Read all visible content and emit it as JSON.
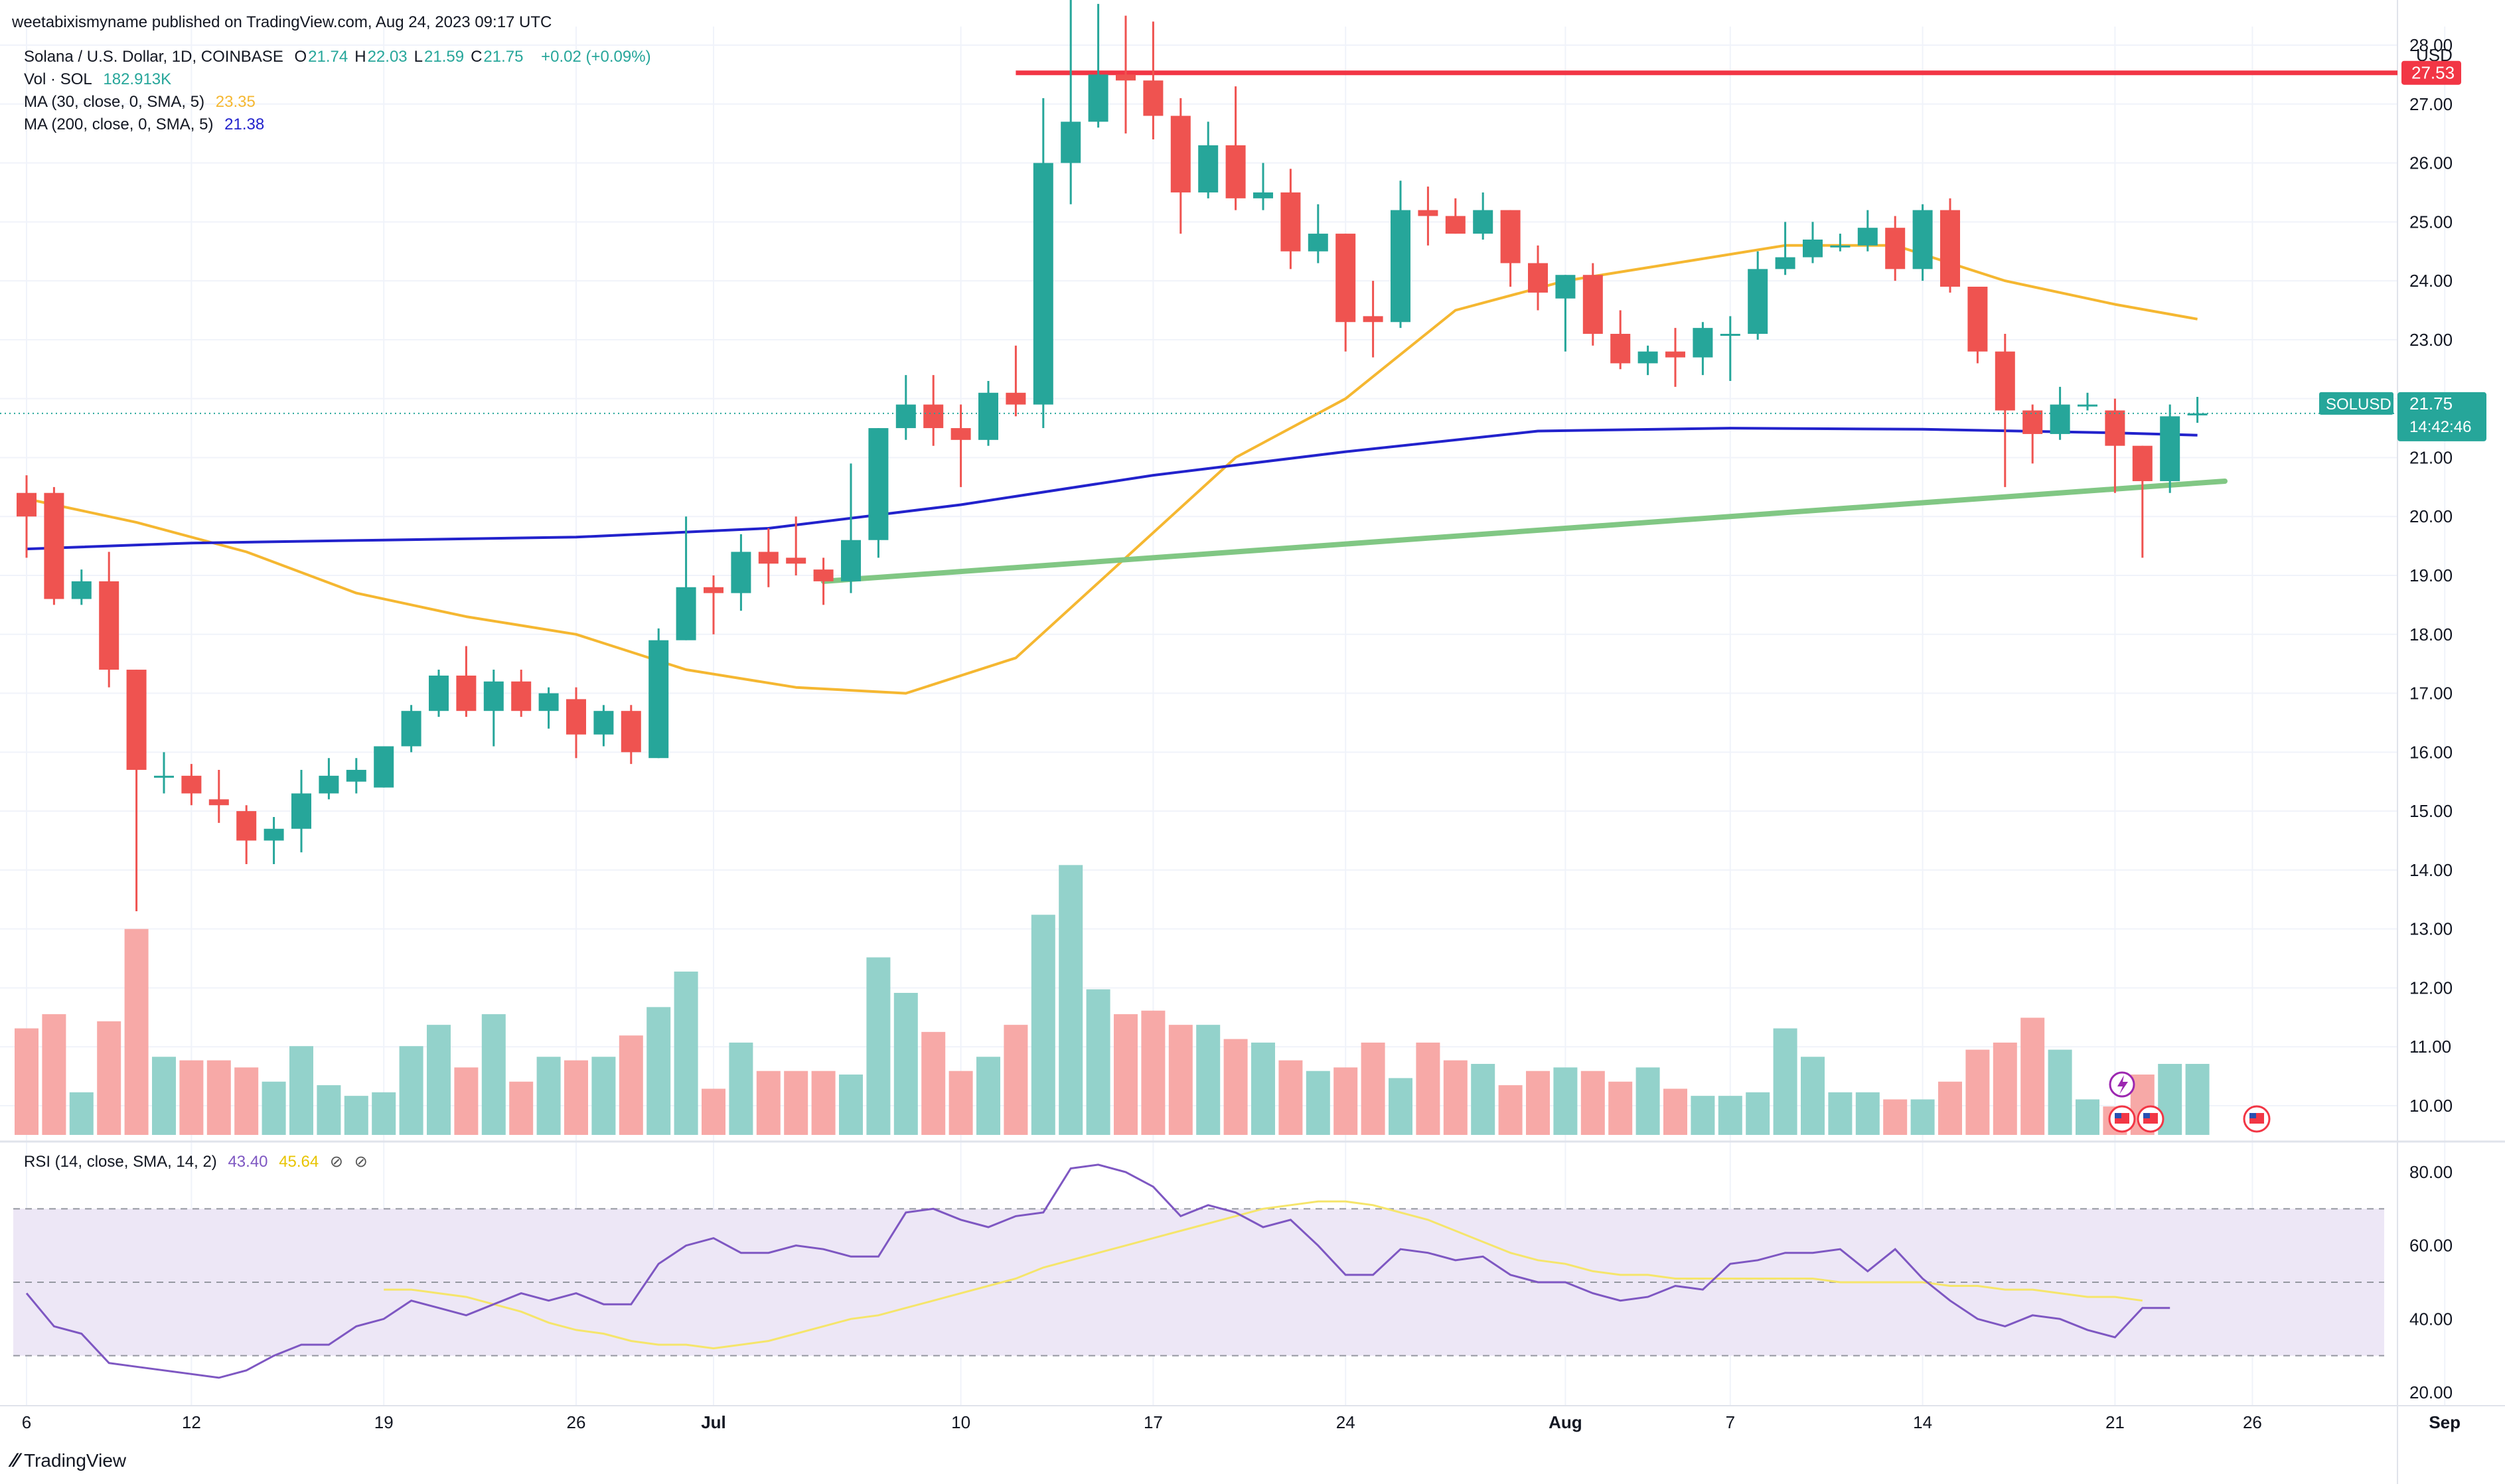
{
  "header": {
    "published_by": "weetabixismyname published on TradingView.com, Aug 24, 2023 09:17 UTC"
  },
  "legend": {
    "symbol": "Solana / U.S. Dollar, 1D, COINBASE",
    "ohlc": [
      {
        "k": "O",
        "v": "21.74"
      },
      {
        "k": "H",
        "v": "22.03"
      },
      {
        "k": "L",
        "v": "21.59"
      },
      {
        "k": "C",
        "v": "21.75"
      }
    ],
    "change": "+0.02 (+0.09%)",
    "vol_label": "Vol · SOL",
    "vol_value": "182.913K",
    "ma30_label": "MA (30, close, 0, SMA, 5)",
    "ma30_value": "23.35",
    "ma200_label": "MA (200, close, 0, SMA, 5)",
    "ma200_value": "21.38",
    "rsi_label": "RSI (14, close, SMA, 14, 2)",
    "rsi_value": "43.40",
    "rsi_sma_value": "45.64"
  },
  "price_axis": {
    "currency": "USD",
    "ticks": [
      "28.00",
      "27.00",
      "26.00",
      "25.00",
      "24.00",
      "23.00",
      "22.00",
      "21.00",
      "20.00",
      "19.00",
      "18.00",
      "17.00",
      "16.00",
      "15.00",
      "14.00",
      "13.00",
      "12.00",
      "11.00",
      "10.00"
    ],
    "resistance_label": "27.53",
    "symbol_tag": "SOLUSD",
    "last_price": "21.75",
    "countdown": "14:42:46"
  },
  "rsi_axis": {
    "ticks": [
      "80.00",
      "60.00",
      "40.00",
      "20.00"
    ]
  },
  "time_axis": {
    "ticks": [
      "6",
      "12",
      "19",
      "26",
      "Jul",
      "10",
      "17",
      "24",
      "Aug",
      "7",
      "14",
      "21",
      "26",
      "Sep"
    ]
  },
  "colors": {
    "up": "#26a69a",
    "down": "#ef5350",
    "vol_up": "#93d2cb",
    "vol_down": "#f7a9a7",
    "ma30": "#f5b731",
    "ma200": "#2222cc",
    "resistance": "#f23645",
    "trendline": "#81c784",
    "rsi": "#7e57c2",
    "rsi_sma": "#f5e56b",
    "rsi_band": "#ede7f6"
  },
  "logo_text": "TradingView",
  "chart_data": {
    "type": "candlestick",
    "title": "Solana / U.S. Dollar, 1D, COINBASE",
    "ylim": [
      9.5,
      28.5
    ],
    "candles": [
      {
        "d": "Jun 6",
        "o": 20.4,
        "h": 20.7,
        "l": 19.3,
        "c": 20.0
      },
      {
        "d": "Jun 7",
        "o": 20.4,
        "h": 20.5,
        "l": 18.5,
        "c": 18.6
      },
      {
        "d": "Jun 8",
        "o": 18.6,
        "h": 19.1,
        "l": 18.5,
        "c": 18.9
      },
      {
        "d": "Jun 9",
        "o": 18.9,
        "h": 19.4,
        "l": 17.1,
        "c": 17.4
      },
      {
        "d": "Jun 10",
        "o": 17.4,
        "h": 17.4,
        "l": 13.3,
        "c": 15.7
      },
      {
        "d": "Jun 11",
        "o": 15.6,
        "h": 16.0,
        "l": 15.3,
        "c": 15.6
      },
      {
        "d": "Jun 12",
        "o": 15.6,
        "h": 15.8,
        "l": 15.1,
        "c": 15.3
      },
      {
        "d": "Jun 13",
        "o": 15.2,
        "h": 15.7,
        "l": 14.8,
        "c": 15.1
      },
      {
        "d": "Jun 14",
        "o": 15.0,
        "h": 15.1,
        "l": 14.1,
        "c": 14.5
      },
      {
        "d": "Jun 15",
        "o": 14.5,
        "h": 14.9,
        "l": 14.1,
        "c": 14.7
      },
      {
        "d": "Jun 16",
        "o": 14.7,
        "h": 15.7,
        "l": 14.3,
        "c": 15.3
      },
      {
        "d": "Jun 17",
        "o": 15.3,
        "h": 15.9,
        "l": 15.2,
        "c": 15.6
      },
      {
        "d": "Jun 18",
        "o": 15.5,
        "h": 15.9,
        "l": 15.3,
        "c": 15.7
      },
      {
        "d": "Jun 19",
        "o": 15.4,
        "h": 16.0,
        "l": 15.4,
        "c": 16.1
      },
      {
        "d": "Jun 20",
        "o": 16.1,
        "h": 16.8,
        "l": 16.0,
        "c": 16.7
      },
      {
        "d": "Jun 21",
        "o": 16.7,
        "h": 17.4,
        "l": 16.6,
        "c": 17.3
      },
      {
        "d": "Jun 22",
        "o": 17.3,
        "h": 17.8,
        "l": 16.6,
        "c": 16.7
      },
      {
        "d": "Jun 23",
        "o": 16.7,
        "h": 17.4,
        "l": 16.1,
        "c": 17.2
      },
      {
        "d": "Jun 24",
        "o": 17.2,
        "h": 17.4,
        "l": 16.6,
        "c": 16.7
      },
      {
        "d": "Jun 25",
        "o": 16.7,
        "h": 17.1,
        "l": 16.4,
        "c": 17.0
      },
      {
        "d": "Jun 26",
        "o": 16.9,
        "h": 17.1,
        "l": 15.9,
        "c": 16.3
      },
      {
        "d": "Jun 27",
        "o": 16.3,
        "h": 16.8,
        "l": 16.1,
        "c": 16.7
      },
      {
        "d": "Jun 28",
        "o": 16.7,
        "h": 16.8,
        "l": 15.8,
        "c": 16.0
      },
      {
        "d": "Jun 29",
        "o": 15.9,
        "h": 18.1,
        "l": 15.9,
        "c": 17.9
      },
      {
        "d": "Jun 30",
        "o": 17.9,
        "h": 20.0,
        "l": 17.9,
        "c": 18.8
      },
      {
        "d": "Jul 1",
        "o": 18.8,
        "h": 19.0,
        "l": 18.0,
        "c": 18.7
      },
      {
        "d": "Jul 2",
        "o": 18.7,
        "h": 19.7,
        "l": 18.4,
        "c": 19.4
      },
      {
        "d": "Jul 3",
        "o": 19.4,
        "h": 19.8,
        "l": 18.8,
        "c": 19.2
      },
      {
        "d": "Jul 4",
        "o": 19.3,
        "h": 20.0,
        "l": 19.0,
        "c": 19.2
      },
      {
        "d": "Jul 5",
        "o": 19.1,
        "h": 19.3,
        "l": 18.5,
        "c": 18.9
      },
      {
        "d": "Jul 6",
        "o": 18.9,
        "h": 20.9,
        "l": 18.7,
        "c": 19.6
      },
      {
        "d": "Jul 7",
        "o": 19.6,
        "h": 21.5,
        "l": 19.3,
        "c": 21.5
      },
      {
        "d": "Jul 8",
        "o": 21.5,
        "h": 22.4,
        "l": 21.3,
        "c": 21.9
      },
      {
        "d": "Jul 9",
        "o": 21.9,
        "h": 22.4,
        "l": 21.2,
        "c": 21.5
      },
      {
        "d": "Jul 10",
        "o": 21.5,
        "h": 21.9,
        "l": 20.5,
        "c": 21.3
      },
      {
        "d": "Jul 11",
        "o": 21.3,
        "h": 22.3,
        "l": 21.2,
        "c": 22.1
      },
      {
        "d": "Jul 12",
        "o": 22.1,
        "h": 22.9,
        "l": 21.7,
        "c": 21.9
      },
      {
        "d": "Jul 13",
        "o": 21.9,
        "h": 27.1,
        "l": 21.5,
        "c": 26.0
      },
      {
        "d": "Jul 14",
        "o": 26.0,
        "h": 28.8,
        "l": 25.3,
        "c": 26.7
      },
      {
        "d": "Jul 15",
        "o": 26.7,
        "h": 28.7,
        "l": 26.6,
        "c": 27.5
      },
      {
        "d": "Jul 16",
        "o": 27.5,
        "h": 28.5,
        "l": 26.5,
        "c": 27.4
      },
      {
        "d": "Jul 17",
        "o": 27.4,
        "h": 28.4,
        "l": 26.4,
        "c": 26.8
      },
      {
        "d": "Jul 18",
        "o": 26.8,
        "h": 27.1,
        "l": 24.8,
        "c": 25.5
      },
      {
        "d": "Jul 19",
        "o": 25.5,
        "h": 26.7,
        "l": 25.4,
        "c": 26.3
      },
      {
        "d": "Jul 20",
        "o": 26.3,
        "h": 27.3,
        "l": 25.2,
        "c": 25.4
      },
      {
        "d": "Jul 21",
        "o": 25.4,
        "h": 26.0,
        "l": 25.2,
        "c": 25.5
      },
      {
        "d": "Jul 22",
        "o": 25.5,
        "h": 25.9,
        "l": 24.2,
        "c": 24.5
      },
      {
        "d": "Jul 23",
        "o": 24.5,
        "h": 25.3,
        "l": 24.3,
        "c": 24.8
      },
      {
        "d": "Jul 24",
        "o": 24.8,
        "h": 24.8,
        "l": 22.8,
        "c": 23.3
      },
      {
        "d": "Jul 25",
        "o": 23.4,
        "h": 24.0,
        "l": 22.7,
        "c": 23.3
      },
      {
        "d": "Jul 26",
        "o": 23.3,
        "h": 25.7,
        "l": 23.2,
        "c": 25.2
      },
      {
        "d": "Jul 27",
        "o": 25.2,
        "h": 25.6,
        "l": 24.6,
        "c": 25.1
      },
      {
        "d": "Jul 28",
        "o": 25.1,
        "h": 25.4,
        "l": 24.8,
        "c": 24.8
      },
      {
        "d": "Jul 29",
        "o": 24.8,
        "h": 25.5,
        "l": 24.7,
        "c": 25.2
      },
      {
        "d": "Jul 30",
        "o": 25.2,
        "h": 25.2,
        "l": 23.9,
        "c": 24.3
      },
      {
        "d": "Jul 31",
        "o": 24.3,
        "h": 24.6,
        "l": 23.5,
        "c": 23.8
      },
      {
        "d": "Aug 1",
        "o": 23.7,
        "h": 24.1,
        "l": 22.8,
        "c": 24.1
      },
      {
        "d": "Aug 2",
        "o": 24.1,
        "h": 24.3,
        "l": 22.9,
        "c": 23.1
      },
      {
        "d": "Aug 3",
        "o": 23.1,
        "h": 23.5,
        "l": 22.5,
        "c": 22.6
      },
      {
        "d": "Aug 4",
        "o": 22.6,
        "h": 22.9,
        "l": 22.4,
        "c": 22.8
      },
      {
        "d": "Aug 5",
        "o": 22.8,
        "h": 23.2,
        "l": 22.2,
        "c": 22.7
      },
      {
        "d": "Aug 6",
        "o": 22.7,
        "h": 23.3,
        "l": 22.4,
        "c": 23.2
      },
      {
        "d": "Aug 7",
        "o": 23.1,
        "h": 23.4,
        "l": 22.3,
        "c": 23.1
      },
      {
        "d": "Aug 8",
        "o": 23.1,
        "h": 24.5,
        "l": 23.0,
        "c": 24.2
      },
      {
        "d": "Aug 9",
        "o": 24.2,
        "h": 25.0,
        "l": 24.1,
        "c": 24.4
      },
      {
        "d": "Aug 10",
        "o": 24.4,
        "h": 25.0,
        "l": 24.3,
        "c": 24.7
      },
      {
        "d": "Aug 11",
        "o": 24.6,
        "h": 24.8,
        "l": 24.5,
        "c": 24.6
      },
      {
        "d": "Aug 12",
        "o": 24.6,
        "h": 25.2,
        "l": 24.5,
        "c": 24.9
      },
      {
        "d": "Aug 13",
        "o": 24.9,
        "h": 25.1,
        "l": 24.0,
        "c": 24.2
      },
      {
        "d": "Aug 14",
        "o": 24.2,
        "h": 25.3,
        "l": 24.0,
        "c": 25.2
      },
      {
        "d": "Aug 15",
        "o": 25.2,
        "h": 25.4,
        "l": 23.8,
        "c": 23.9
      },
      {
        "d": "Aug 16",
        "o": 23.9,
        "h": 23.9,
        "l": 22.6,
        "c": 22.8
      },
      {
        "d": "Aug 17",
        "o": 22.8,
        "h": 23.1,
        "l": 20.5,
        "c": 21.8
      },
      {
        "d": "Aug 18",
        "o": 21.8,
        "h": 21.9,
        "l": 20.9,
        "c": 21.4
      },
      {
        "d": "Aug 19",
        "o": 21.4,
        "h": 22.2,
        "l": 21.3,
        "c": 21.9
      },
      {
        "d": "Aug 20",
        "o": 21.9,
        "h": 22.1,
        "l": 21.8,
        "c": 21.9
      },
      {
        "d": "Aug 21",
        "o": 21.8,
        "h": 22.0,
        "l": 20.4,
        "c": 21.2
      },
      {
        "d": "Aug 22",
        "o": 21.2,
        "h": 21.2,
        "l": 19.3,
        "c": 20.6
      },
      {
        "d": "Aug 23",
        "o": 20.6,
        "h": 21.9,
        "l": 20.4,
        "c": 21.7
      },
      {
        "d": "Aug 24",
        "o": 21.74,
        "h": 22.03,
        "l": 21.59,
        "c": 21.75
      }
    ],
    "volume": [
      30,
      34,
      12,
      32,
      58,
      22,
      21,
      21,
      19,
      15,
      25,
      14,
      11,
      12,
      25,
      31,
      19,
      34,
      15,
      22,
      21,
      22,
      28,
      36,
      46,
      13,
      26,
      18,
      18,
      18,
      17,
      50,
      40,
      29,
      18,
      22,
      31,
      62,
      76,
      41,
      34,
      35,
      31,
      31,
      27,
      26,
      21,
      18,
      19,
      26,
      16,
      26,
      21,
      20,
      14,
      18,
      19,
      18,
      15,
      19,
      13,
      11,
      11,
      12,
      30,
      22,
      12,
      12,
      10,
      10,
      15,
      24,
      26,
      33,
      24,
      10,
      8,
      17,
      20,
      20
    ],
    "ma30": [
      {
        "d": "Jun 6",
        "v": 20.3
      },
      {
        "d": "Jun 10",
        "v": 19.9
      },
      {
        "d": "Jun 14",
        "v": 19.4
      },
      {
        "d": "Jun 18",
        "v": 18.7
      },
      {
        "d": "Jun 22",
        "v": 18.3
      },
      {
        "d": "Jun 26",
        "v": 18.0
      },
      {
        "d": "Jun 30",
        "v": 17.4
      },
      {
        "d": "Jul 4",
        "v": 17.1
      },
      {
        "d": "Jul 8",
        "v": 17.0
      },
      {
        "d": "Jul 12",
        "v": 17.6
      },
      {
        "d": "Jul 16",
        "v": 19.3
      },
      {
        "d": "Jul 20",
        "v": 21.0
      },
      {
        "d": "Jul 24",
        "v": 22.0
      },
      {
        "d": "Jul 28",
        "v": 23.5
      },
      {
        "d": "Aug 1",
        "v": 24.0
      },
      {
        "d": "Aug 5",
        "v": 24.3
      },
      {
        "d": "Aug 9",
        "v": 24.6
      },
      {
        "d": "Aug 13",
        "v": 24.6
      },
      {
        "d": "Aug 17",
        "v": 24.0
      },
      {
        "d": "Aug 21",
        "v": 23.6
      },
      {
        "d": "Aug 24",
        "v": 23.35
      }
    ],
    "ma200": [
      {
        "d": "Jun 6",
        "v": 19.45
      },
      {
        "d": "Jun 12",
        "v": 19.55
      },
      {
        "d": "Jun 19",
        "v": 19.6
      },
      {
        "d": "Jun 26",
        "v": 19.65
      },
      {
        "d": "Jul 3",
        "v": 19.8
      },
      {
        "d": "Jul 10",
        "v": 20.2
      },
      {
        "d": "Jul 17",
        "v": 20.7
      },
      {
        "d": "Jul 24",
        "v": 21.1
      },
      {
        "d": "Jul 31",
        "v": 21.45
      },
      {
        "d": "Aug 7",
        "v": 21.5
      },
      {
        "d": "Aug 14",
        "v": 21.48
      },
      {
        "d": "Aug 21",
        "v": 21.42
      },
      {
        "d": "Aug 24",
        "v": 21.38
      }
    ],
    "resistance": {
      "value": 27.53,
      "from": "Jul 12",
      "to": "Sep 5"
    },
    "trendline": {
      "from": {
        "d": "Jul 5",
        "v": 18.9
      },
      "to": {
        "d": "Aug 25",
        "v": 20.6
      }
    },
    "rsi": [
      47,
      38,
      36,
      28,
      27,
      26,
      25,
      24,
      26,
      30,
      33,
      33,
      38,
      40,
      45,
      43,
      41,
      44,
      47,
      45,
      47,
      44,
      44,
      55,
      60,
      62,
      58,
      58,
      60,
      59,
      57,
      57,
      69,
      70,
      67,
      65,
      68,
      69,
      81,
      82,
      80,
      76,
      68,
      71,
      69,
      65,
      67,
      60,
      52,
      52,
      59,
      58,
      56,
      57,
      52,
      50,
      50,
      47,
      45,
      46,
      49,
      48,
      55,
      56,
      58,
      58,
      59,
      53,
      59,
      51,
      45,
      40,
      38,
      41,
      40,
      37,
      35,
      43,
      43
    ],
    "rsi_sma": [
      48,
      48,
      47,
      46,
      44,
      42,
      39,
      37,
      36,
      34,
      33,
      33,
      32,
      33,
      34,
      36,
      38,
      40,
      41,
      43,
      45,
      47,
      49,
      51,
      54,
      56,
      58,
      60,
      62,
      64,
      66,
      68,
      70,
      71,
      72,
      72,
      71,
      69,
      67,
      64,
      61,
      58,
      56,
      55,
      53,
      52,
      52,
      51,
      51,
      51,
      51,
      51,
      51,
      50,
      50,
      50,
      50,
      49,
      49,
      48,
      48,
      47,
      46,
      46,
      45
    ],
    "rsi_ylim": [
      18,
      86
    ],
    "rsi_bands": [
      70,
      50,
      30
    ]
  }
}
